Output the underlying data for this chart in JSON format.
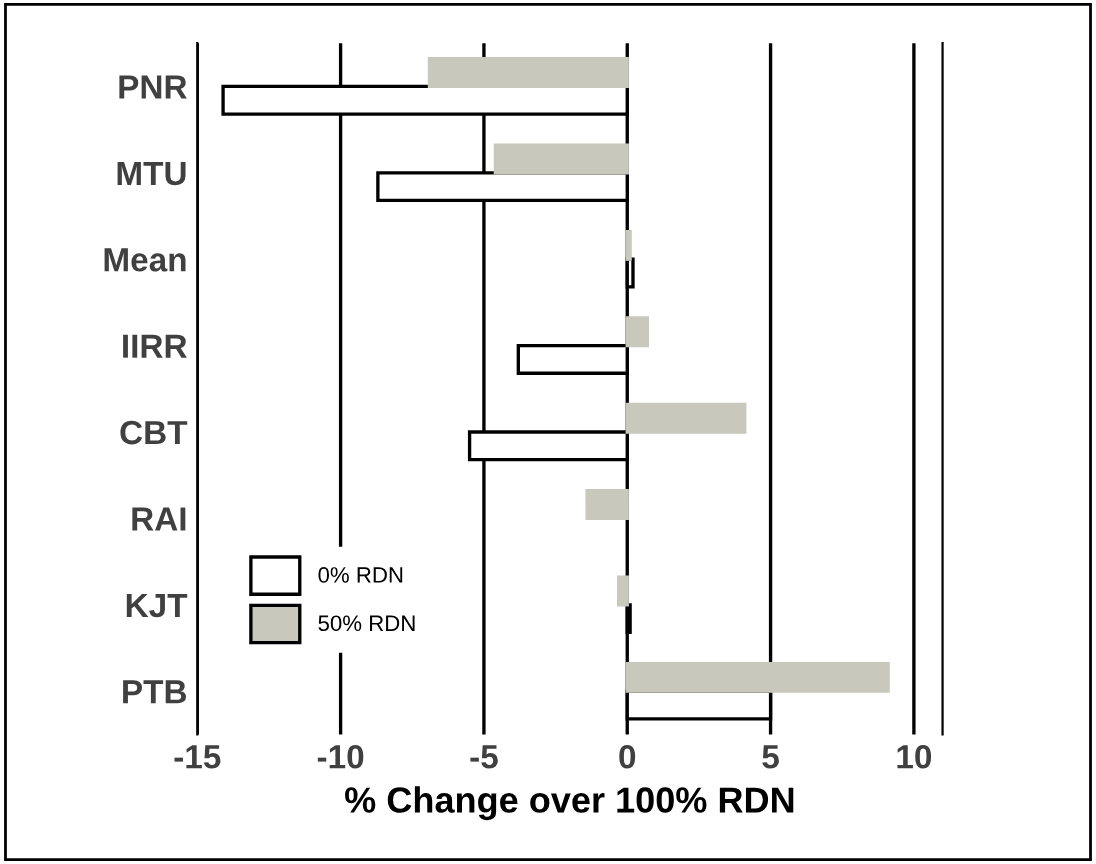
{
  "chart_data": {
    "type": "bar",
    "orientation": "horizontal",
    "xlabel": "% Change over 100% RDN",
    "categories": [
      "PNR",
      "MTU",
      "Mean",
      "IIRR",
      "CBT",
      "RAI",
      "KJT",
      "PTB"
    ],
    "series": [
      {
        "name": "0% RDN",
        "color": "#ffffff",
        "values": [
          -14.1,
          -8.7,
          0.2,
          -3.8,
          -5.5,
          null,
          0.1,
          5.0
        ]
      },
      {
        "name": "50% RDN",
        "color": "#c8c8bc",
        "values": [
          -6.9,
          -4.6,
          0.1,
          0.7,
          4.1,
          -1.4,
          -0.3,
          9.1
        ]
      }
    ],
    "xlim": [
      -15,
      11
    ],
    "xticks": [
      -15,
      -10,
      -5,
      0,
      5,
      10
    ],
    "grid": "x",
    "legend": "bottom left"
  }
}
